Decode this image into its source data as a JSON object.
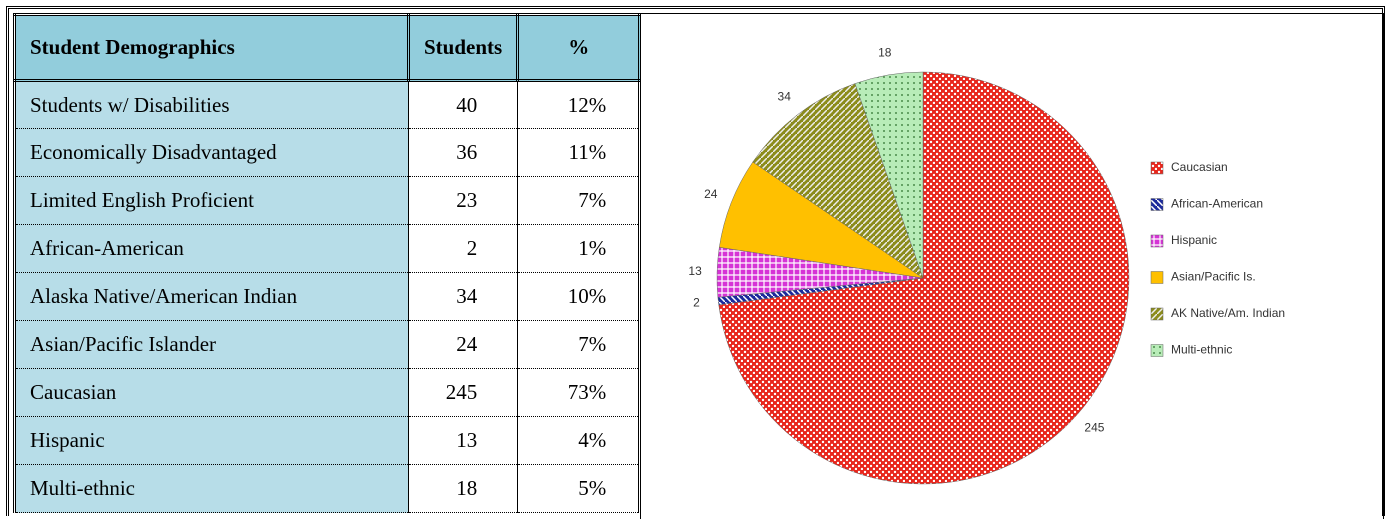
{
  "table": {
    "header": [
      "Student Demographics",
      "Students",
      "%"
    ],
    "rows": [
      [
        "Students w/ Disabilities",
        "40",
        "12%"
      ],
      [
        "Economically Disadvantaged",
        "36",
        "11%"
      ],
      [
        "Limited English Proficient",
        "23",
        "7%"
      ],
      [
        "African-American",
        "2",
        "1%"
      ],
      [
        "Alaska Native/American Indian",
        "34",
        "10%"
      ],
      [
        "Asian/Pacific Islander",
        "24",
        "7%"
      ],
      [
        "Caucasian",
        "245",
        "73%"
      ],
      [
        "Hispanic",
        "13",
        "4%"
      ],
      [
        "Multi-ethnic",
        "18",
        "5%"
      ]
    ]
  },
  "chart_data": {
    "type": "pie",
    "categories": [
      "Caucasian",
      "African-American",
      "Hispanic",
      "Asian/Pacific Is.",
      "AK Native/Am. Indian",
      "Multi-ethnic"
    ],
    "values": [
      245,
      2,
      13,
      24,
      34,
      18
    ],
    "colors": [
      "#e8261c",
      "#1c2a9c",
      "#d633d6",
      "#ffc000",
      "#8c8c1c",
      "#b8ecb8"
    ],
    "legend": "right"
  }
}
